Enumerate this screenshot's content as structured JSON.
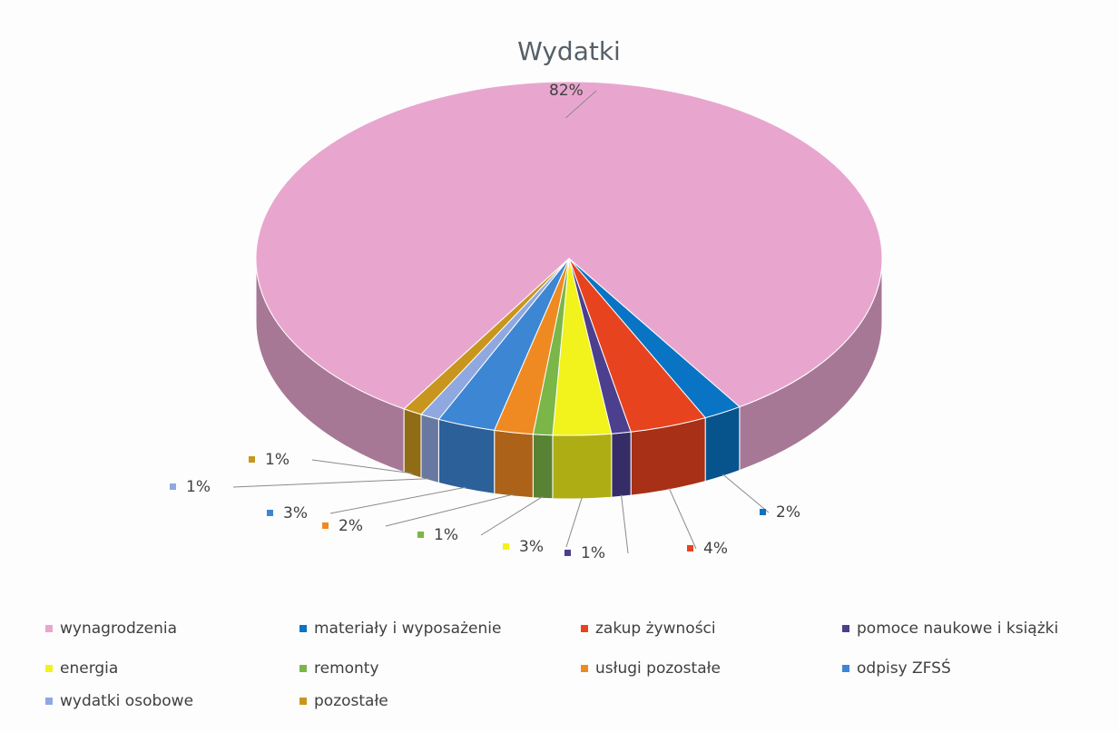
{
  "chart_data": {
    "type": "pie3d",
    "title": "Wydatki",
    "categories": [
      "wynagrodzenia",
      "materiały i wyposażenie",
      "zakup żywności",
      "pomoce naukowe i książki",
      "energia",
      "remonty",
      "usługi pozostałe",
      "odpisy ZFSŚ",
      "wydatki osobowe",
      "pozostałe"
    ],
    "values": [
      82,
      2,
      4,
      1,
      3,
      1,
      2,
      3,
      1,
      1
    ],
    "value_labels": [
      "82%",
      "2%",
      "4%",
      "1%",
      "3%",
      "1%",
      "2%",
      "3%",
      "1%",
      "1%"
    ],
    "colors": [
      "#e8a6cf",
      "#0a74c4",
      "#e8431f",
      "#4b3f8e",
      "#f2f21c",
      "#7ab648",
      "#ef8a23",
      "#3d86d4",
      "#8fa8e0",
      "#c8961e"
    ],
    "legend": "bottom"
  }
}
